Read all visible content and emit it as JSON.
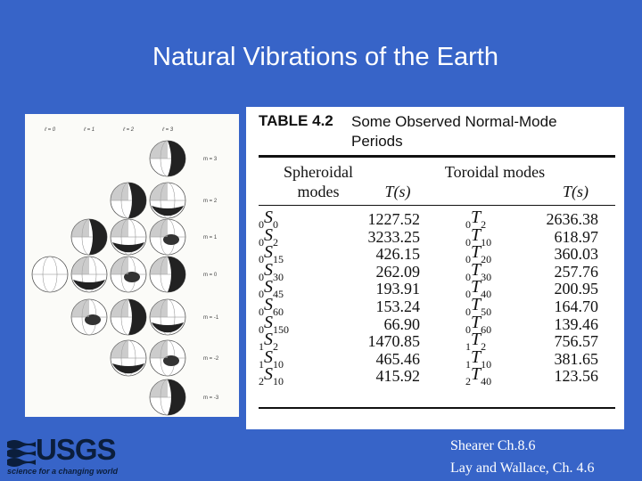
{
  "title": "Natural Vibrations of the Earth",
  "figure": {
    "l_labels": [
      "ℓ = 0",
      "ℓ = 1",
      "ℓ = 2",
      "ℓ = 3"
    ],
    "m_labels": [
      "m = 3",
      "m = 2",
      "m = 1",
      "m = 0",
      "m = -1",
      "m = -2",
      "m = -3"
    ]
  },
  "table": {
    "label": "TABLE 4.2",
    "caption": "Some Observed Normal-Mode Periods",
    "headers": [
      "Spheroidal modes",
      "T(s)",
      "Toroidal modes",
      "T(s)"
    ],
    "rows": [
      {
        "spheroidal": {
          "n": "0",
          "type": "S",
          "l": "0"
        },
        "s_period": "1227.52",
        "toroidal": {
          "n": "0",
          "type": "T",
          "l": "2"
        },
        "t_period": "2636.38"
      },
      {
        "spheroidal": {
          "n": "0",
          "type": "S",
          "l": "2"
        },
        "s_period": "3233.25",
        "toroidal": {
          "n": "0",
          "type": "T",
          "l": "10"
        },
        "t_period": "618.97"
      },
      {
        "spheroidal": {
          "n": "0",
          "type": "S",
          "l": "15"
        },
        "s_period": "426.15",
        "toroidal": {
          "n": "0",
          "type": "T",
          "l": "20"
        },
        "t_period": "360.03"
      },
      {
        "spheroidal": {
          "n": "0",
          "type": "S",
          "l": "30"
        },
        "s_period": "262.09",
        "toroidal": {
          "n": "0",
          "type": "T",
          "l": "30"
        },
        "t_period": "257.76"
      },
      {
        "spheroidal": {
          "n": "0",
          "type": "S",
          "l": "45"
        },
        "s_period": "193.91",
        "toroidal": {
          "n": "0",
          "type": "T",
          "l": "40"
        },
        "t_period": "200.95"
      },
      {
        "spheroidal": {
          "n": "0",
          "type": "S",
          "l": "60"
        },
        "s_period": "153.24",
        "toroidal": {
          "n": "0",
          "type": "T",
          "l": "50"
        },
        "t_period": "164.70"
      },
      {
        "spheroidal": {
          "n": "0",
          "type": "S",
          "l": "150"
        },
        "s_period": "66.90",
        "toroidal": {
          "n": "0",
          "type": "T",
          "l": "60"
        },
        "t_period": "139.46"
      },
      {
        "spheroidal": {
          "n": "1",
          "type": "S",
          "l": "2"
        },
        "s_period": "1470.85",
        "toroidal": {
          "n": "1",
          "type": "T",
          "l": "2"
        },
        "t_period": "756.57"
      },
      {
        "spheroidal": {
          "n": "1",
          "type": "S",
          "l": "10"
        },
        "s_period": "465.46",
        "toroidal": {
          "n": "1",
          "type": "T",
          "l": "10"
        },
        "t_period": "381.65"
      },
      {
        "spheroidal": {
          "n": "2",
          "type": "S",
          "l": "10"
        },
        "s_period": "415.92",
        "toroidal": {
          "n": "2",
          "type": "T",
          "l": "40"
        },
        "t_period": "123.56"
      }
    ]
  },
  "logo": {
    "name": "USGS",
    "tagline": "science for a changing world"
  },
  "references": [
    "Shearer Ch.8.6",
    "Lay and Wallace, Ch. 4.6"
  ]
}
